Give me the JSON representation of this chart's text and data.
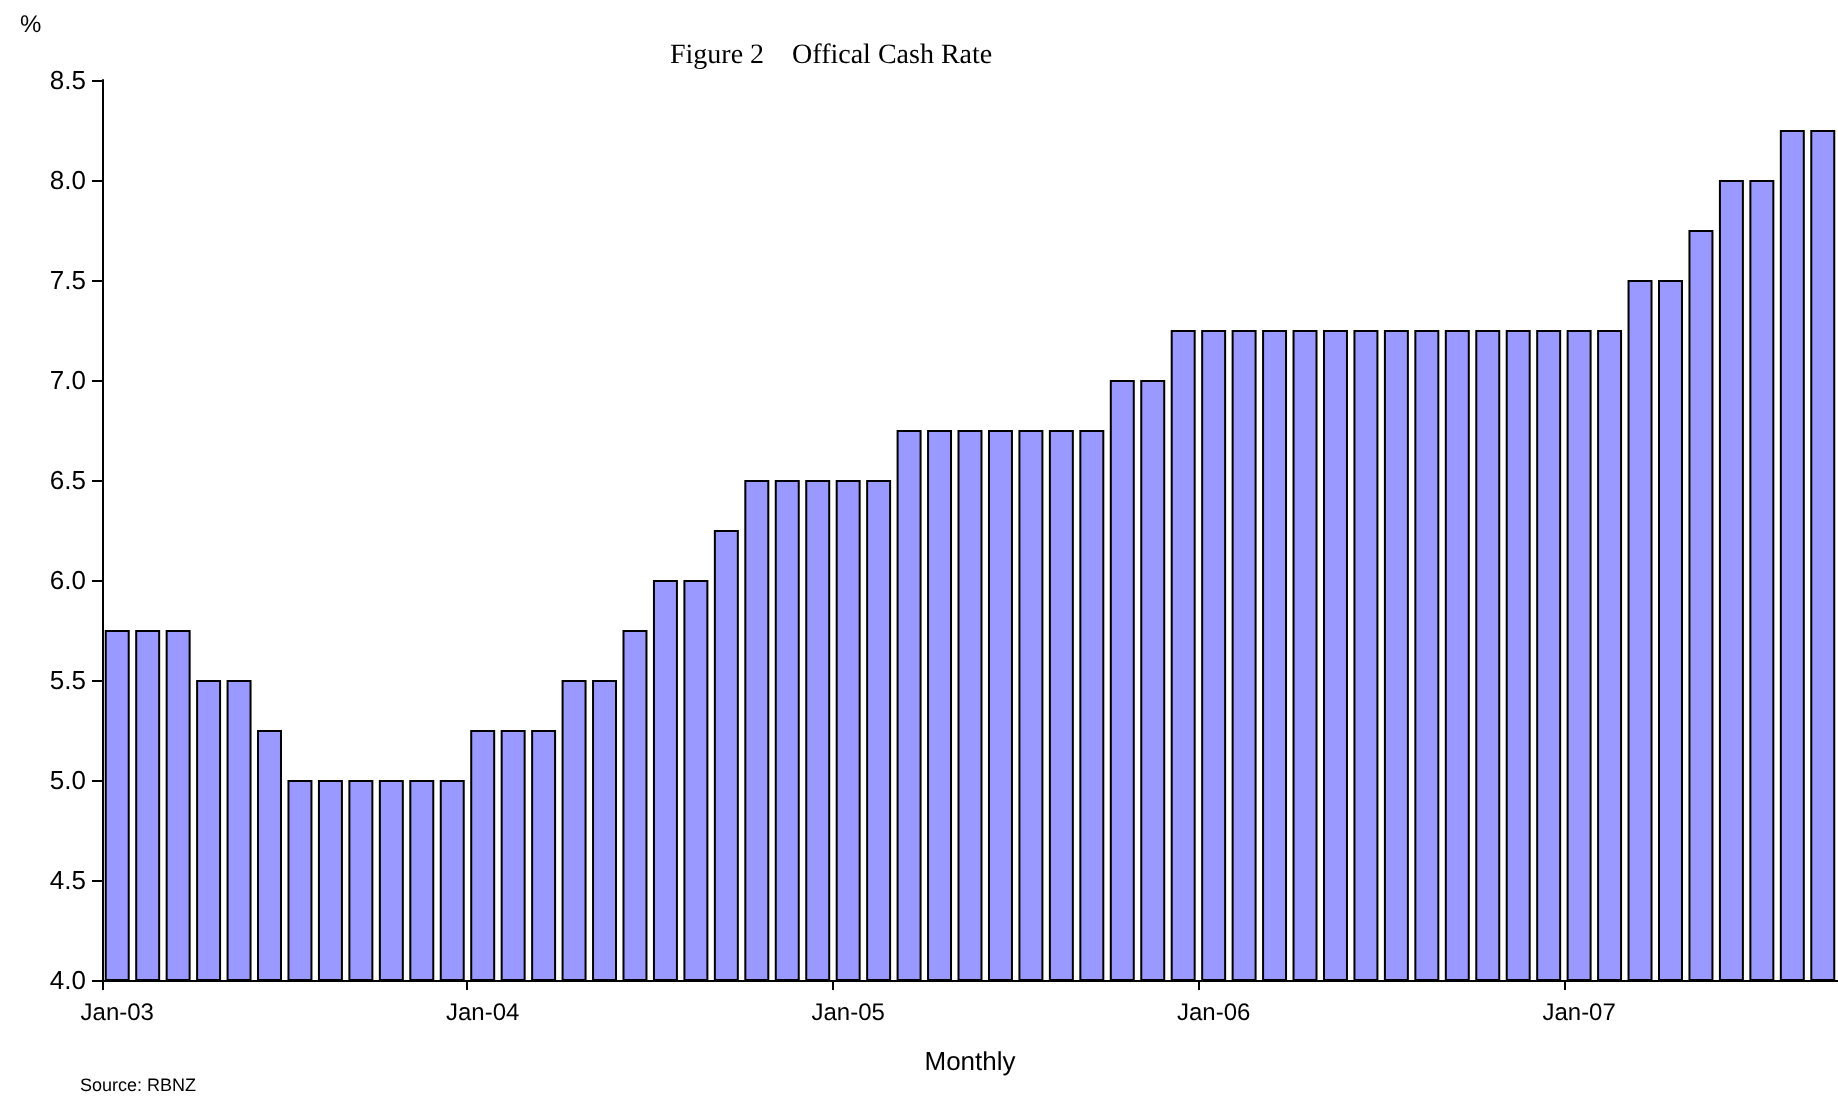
{
  "chart_data": {
    "type": "bar",
    "title": "Figure 2    Offical Cash Rate",
    "xlabel": "Monthly",
    "ylabel": "%",
    "annotations": [
      "Source: RBNZ"
    ],
    "categories": [
      "Jan-03",
      null,
      null,
      null,
      null,
      null,
      null,
      null,
      null,
      null,
      null,
      null,
      "Jan-04",
      null,
      null,
      null,
      null,
      null,
      null,
      null,
      null,
      null,
      null,
      null,
      "Jan-05",
      null,
      null,
      null,
      null,
      null,
      null,
      null,
      null,
      null,
      null,
      null,
      "Jan-06",
      null,
      null,
      null,
      null,
      null,
      null,
      null,
      null,
      null,
      null,
      null,
      "Jan-07",
      null,
      null,
      null,
      null,
      null,
      null,
      null,
      null
    ],
    "values": [
      5.75,
      5.75,
      5.75,
      5.5,
      5.5,
      5.25,
      5.0,
      5.0,
      5.0,
      5.0,
      5.0,
      5.0,
      5.25,
      5.25,
      5.25,
      5.5,
      5.5,
      5.75,
      6.0,
      6.0,
      6.25,
      6.5,
      6.5,
      6.5,
      6.5,
      6.5,
      6.75,
      6.75,
      6.75,
      6.75,
      6.75,
      6.75,
      6.75,
      7.0,
      7.0,
      7.25,
      7.25,
      7.25,
      7.25,
      7.25,
      7.25,
      7.25,
      7.25,
      7.25,
      7.25,
      7.25,
      7.25,
      7.25,
      7.25,
      7.25,
      7.5,
      7.5,
      7.75,
      8.0,
      8.0,
      8.25,
      8.25
    ],
    "color": "#9999ff",
    "ylim": [
      4.0,
      8.5
    ],
    "yticks": [
      {
        "value": 4.0,
        "label": "4.0"
      },
      {
        "value": 4.5,
        "label": "4.5"
      },
      {
        "value": 5.0,
        "label": "5.0"
      },
      {
        "value": 5.5,
        "label": "5.5"
      },
      {
        "value": 6.0,
        "label": "6.0"
      },
      {
        "value": 6.5,
        "label": "6.5"
      },
      {
        "value": 7.0,
        "label": "7.0"
      },
      {
        "value": 7.5,
        "label": "7.5"
      },
      {
        "value": 8.0,
        "label": "8.0"
      },
      {
        "value": 8.5,
        "label": "8.5"
      }
    ],
    "grid": false
  }
}
